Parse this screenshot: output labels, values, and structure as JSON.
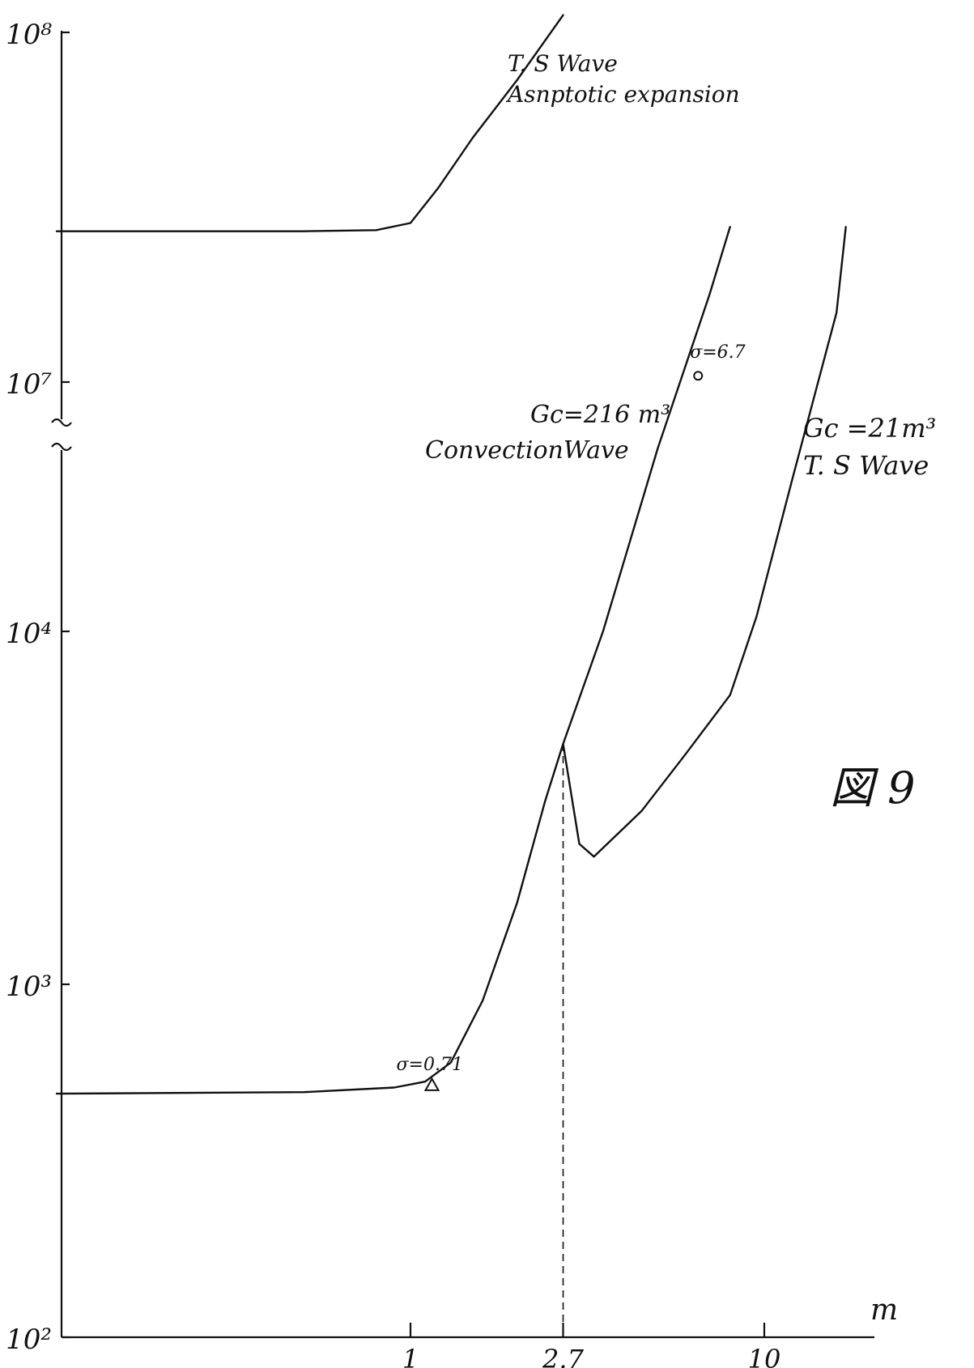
{
  "chart_data": {
    "type": "line",
    "title": "",
    "figure_label": "図 9",
    "xlabel": "m",
    "ylabel": "",
    "x_scale": "log",
    "y_scale": "log (broken axis between 10^7 and 10^4)",
    "x_ticks": [
      {
        "value": 1,
        "label": "1"
      },
      {
        "value": 2.7,
        "label": "2.7"
      },
      {
        "value": 10,
        "label": "10"
      }
    ],
    "y_ticks": [
      {
        "value": 100,
        "label": "10²"
      },
      {
        "value": 1000,
        "label": "10³"
      },
      {
        "value": 10000,
        "label": "10⁴"
      },
      {
        "value": 10000000,
        "label": "10⁷"
      },
      {
        "value": 100000000,
        "label": "10⁸"
      }
    ],
    "series": [
      {
        "name": "T. S Wave Asnptotic expansion",
        "label_lines": [
          "T. S Wave",
          "Asnptotic expansion"
        ],
        "points": [
          [
            0.1,
            27000000
          ],
          [
            0.5,
            27000000
          ],
          [
            0.8,
            27200000
          ],
          [
            1.0,
            28500000
          ],
          [
            1.2,
            36000000
          ],
          [
            1.5,
            50000000
          ],
          [
            2.0,
            73000000
          ],
          [
            2.7,
            112000000
          ]
        ]
      },
      {
        "name": "Convection Wave",
        "label_lines": [
          "Gc=216 m³",
          "ConvectionWave"
        ],
        "points": [
          [
            0.1,
            490
          ],
          [
            0.5,
            495
          ],
          [
            0.9,
            510
          ],
          [
            1.1,
            530
          ],
          [
            1.3,
            600
          ],
          [
            1.6,
            900
          ],
          [
            2.0,
            1700
          ],
          [
            2.4,
            3300
          ],
          [
            2.7,
            4800
          ],
          [
            3.5,
            10000
          ],
          [
            5.0,
            33000
          ],
          [
            7.0,
            90000
          ],
          [
            8.0,
            140000
          ]
        ]
      },
      {
        "name": "T.S Wave",
        "label_lines": [
          "Gc =21m³",
          "T. S Wave"
        ],
        "points": [
          [
            2.7,
            4800
          ],
          [
            3.0,
            2500
          ],
          [
            3.3,
            2300
          ],
          [
            4.5,
            3100
          ],
          [
            6.0,
            4500
          ],
          [
            8.0,
            6600
          ],
          [
            9.5,
            11000
          ],
          [
            12.0,
            27000
          ],
          [
            16.0,
            80000
          ],
          [
            17.0,
            140000
          ]
        ]
      }
    ],
    "markers": [
      {
        "label": "σ=0.71",
        "shape": "triangle",
        "x": 1.15,
        "y": 520
      },
      {
        "label": "σ=6.7",
        "shape": "circle",
        "x": 6.5,
        "y": 53000
      }
    ],
    "reference_line": {
      "x": 2.7,
      "style": "dashed"
    },
    "legend": "none"
  }
}
